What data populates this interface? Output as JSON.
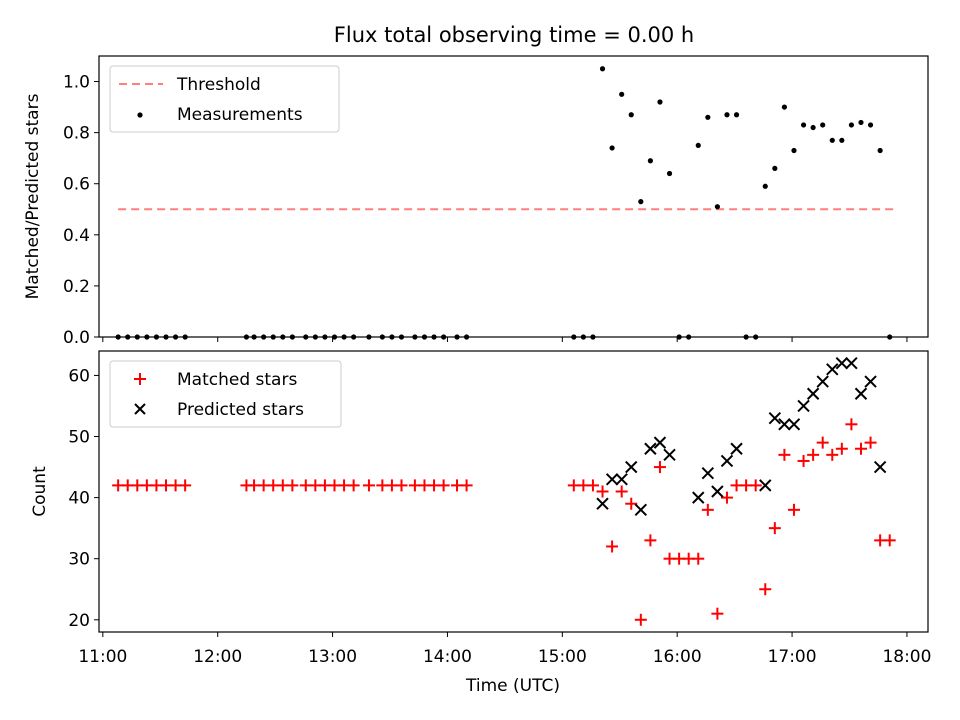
{
  "figure": {
    "title": "Flux total observing time = 0.00 h",
    "xlabel": "Time (UTC)"
  },
  "chart_data": [
    {
      "type": "scatter",
      "ylabel": "Matched/Predicted stars",
      "ylim": [
        0.0,
        1.1
      ],
      "yticks": [
        0.0,
        0.2,
        0.4,
        0.6,
        0.8,
        1.0
      ],
      "ytick_labels": [
        "0.0",
        "0.2",
        "0.4",
        "0.6",
        "0.8",
        "1.0"
      ],
      "xlim": [
        "10:58",
        "18:11"
      ],
      "xticks": [
        "11:00",
        "12:00",
        "13:00",
        "14:00",
        "15:00",
        "16:00",
        "17:00",
        "18:00"
      ],
      "xtick_labels": [
        "11:00",
        "12:00",
        "13:00",
        "14:00",
        "15:00",
        "16:00",
        "17:00",
        "18:00"
      ],
      "legend": "upper-left",
      "threshold": {
        "name": "Threshold",
        "value": 0.5,
        "x_range": [
          "11:08",
          "17:54"
        ],
        "color": "#ff7f7f",
        "style": "dashed"
      },
      "series": [
        {
          "name": "Measurements",
          "marker": "dot",
          "color": "#000000",
          "points": [
            [
              "11:08",
              0.0
            ],
            [
              "11:13",
              0.0
            ],
            [
              "11:18",
              0.0
            ],
            [
              "11:23",
              0.0
            ],
            [
              "11:28",
              0.0
            ],
            [
              "11:33",
              0.0
            ],
            [
              "11:38",
              0.0
            ],
            [
              "11:43",
              0.0
            ],
            [
              "12:15",
              0.0
            ],
            [
              "12:19",
              0.0
            ],
            [
              "12:24",
              0.0
            ],
            [
              "12:29",
              0.0
            ],
            [
              "12:34",
              0.0
            ],
            [
              "12:39",
              0.0
            ],
            [
              "12:46",
              0.0
            ],
            [
              "12:51",
              0.0
            ],
            [
              "12:56",
              0.0
            ],
            [
              "13:01",
              0.0
            ],
            [
              "13:06",
              0.0
            ],
            [
              "13:11",
              0.0
            ],
            [
              "13:19",
              0.0
            ],
            [
              "13:26",
              0.0
            ],
            [
              "13:31",
              0.0
            ],
            [
              "13:36",
              0.0
            ],
            [
              "13:43",
              0.0
            ],
            [
              "13:48",
              0.0
            ],
            [
              "13:53",
              0.0
            ],
            [
              "13:58",
              0.0
            ],
            [
              "14:05",
              0.0
            ],
            [
              "14:10",
              0.0
            ],
            [
              "15:06",
              0.0
            ],
            [
              "15:11",
              0.0
            ],
            [
              "15:16",
              0.0
            ],
            [
              "15:21",
              1.05
            ],
            [
              "15:26",
              0.74
            ],
            [
              "15:31",
              0.95
            ],
            [
              "15:36",
              0.87
            ],
            [
              "15:41",
              0.53
            ],
            [
              "15:46",
              0.69
            ],
            [
              "15:51",
              0.92
            ],
            [
              "15:56",
              0.64
            ],
            [
              "16:01",
              0.0
            ],
            [
              "16:06",
              0.0
            ],
            [
              "16:11",
              0.75
            ],
            [
              "16:16",
              0.86
            ],
            [
              "16:21",
              0.51
            ],
            [
              "16:26",
              0.87
            ],
            [
              "16:31",
              0.87
            ],
            [
              "16:36",
              0.0
            ],
            [
              "16:41",
              0.0
            ],
            [
              "16:46",
              0.59
            ],
            [
              "16:51",
              0.66
            ],
            [
              "16:56",
              0.9
            ],
            [
              "17:01",
              0.73
            ],
            [
              "17:06",
              0.83
            ],
            [
              "17:11",
              0.82
            ],
            [
              "17:16",
              0.83
            ],
            [
              "17:21",
              0.77
            ],
            [
              "17:26",
              0.77
            ],
            [
              "17:31",
              0.83
            ],
            [
              "17:36",
              0.84
            ],
            [
              "17:41",
              0.83
            ],
            [
              "17:46",
              0.73
            ],
            [
              "17:51",
              0.0
            ]
          ]
        }
      ]
    },
    {
      "type": "scatter",
      "ylabel": "Count",
      "ylim": [
        18,
        64
      ],
      "yticks": [
        20,
        30,
        40,
        50,
        60
      ],
      "ytick_labels": [
        "20",
        "30",
        "40",
        "50",
        "60"
      ],
      "xlim": [
        "10:58",
        "18:11"
      ],
      "xticks": [
        "11:00",
        "12:00",
        "13:00",
        "14:00",
        "15:00",
        "16:00",
        "17:00",
        "18:00"
      ],
      "xtick_labels": [
        "11:00",
        "12:00",
        "13:00",
        "14:00",
        "15:00",
        "16:00",
        "17:00",
        "18:00"
      ],
      "legend": "upper-left",
      "series": [
        {
          "name": "Matched stars",
          "marker": "plus",
          "color": "#ff0000",
          "points": [
            [
              "11:08",
              42
            ],
            [
              "11:13",
              42
            ],
            [
              "11:18",
              42
            ],
            [
              "11:23",
              42
            ],
            [
              "11:28",
              42
            ],
            [
              "11:33",
              42
            ],
            [
              "11:38",
              42
            ],
            [
              "11:43",
              42
            ],
            [
              "12:15",
              42
            ],
            [
              "12:19",
              42
            ],
            [
              "12:24",
              42
            ],
            [
              "12:29",
              42
            ],
            [
              "12:34",
              42
            ],
            [
              "12:39",
              42
            ],
            [
              "12:46",
              42
            ],
            [
              "12:51",
              42
            ],
            [
              "12:56",
              42
            ],
            [
              "13:01",
              42
            ],
            [
              "13:06",
              42
            ],
            [
              "13:11",
              42
            ],
            [
              "13:19",
              42
            ],
            [
              "13:26",
              42
            ],
            [
              "13:31",
              42
            ],
            [
              "13:36",
              42
            ],
            [
              "13:43",
              42
            ],
            [
              "13:48",
              42
            ],
            [
              "13:53",
              42
            ],
            [
              "13:58",
              42
            ],
            [
              "14:05",
              42
            ],
            [
              "14:10",
              42
            ],
            [
              "15:06",
              42
            ],
            [
              "15:11",
              42
            ],
            [
              "15:16",
              42
            ],
            [
              "15:21",
              41
            ],
            [
              "15:26",
              32
            ],
            [
              "15:31",
              41
            ],
            [
              "15:36",
              39
            ],
            [
              "15:41",
              20
            ],
            [
              "15:46",
              33
            ],
            [
              "15:51",
              45
            ],
            [
              "15:56",
              30
            ],
            [
              "16:01",
              30
            ],
            [
              "16:06",
              30
            ],
            [
              "16:11",
              30
            ],
            [
              "16:16",
              38
            ],
            [
              "16:21",
              21
            ],
            [
              "16:26",
              40
            ],
            [
              "16:31",
              42
            ],
            [
              "16:36",
              42
            ],
            [
              "16:41",
              42
            ],
            [
              "16:46",
              25
            ],
            [
              "16:51",
              35
            ],
            [
              "16:56",
              47
            ],
            [
              "17:01",
              38
            ],
            [
              "17:06",
              46
            ],
            [
              "17:11",
              47
            ],
            [
              "17:16",
              49
            ],
            [
              "17:21",
              47
            ],
            [
              "17:26",
              48
            ],
            [
              "17:31",
              52
            ],
            [
              "17:36",
              48
            ],
            [
              "17:41",
              49
            ],
            [
              "17:46",
              33
            ],
            [
              "17:51",
              33
            ]
          ]
        },
        {
          "name": "Predicted stars",
          "marker": "x",
          "color": "#000000",
          "points": [
            [
              "15:21",
              39
            ],
            [
              "15:26",
              43
            ],
            [
              "15:31",
              43
            ],
            [
              "15:36",
              45
            ],
            [
              "15:41",
              38
            ],
            [
              "15:46",
              48
            ],
            [
              "15:51",
              49
            ],
            [
              "15:56",
              47
            ],
            [
              "16:11",
              40
            ],
            [
              "16:16",
              44
            ],
            [
              "16:21",
              41
            ],
            [
              "16:26",
              46
            ],
            [
              "16:31",
              48
            ],
            [
              "16:46",
              42
            ],
            [
              "16:51",
              53
            ],
            [
              "16:56",
              52
            ],
            [
              "17:01",
              52
            ],
            [
              "17:06",
              55
            ],
            [
              "17:11",
              57
            ],
            [
              "17:16",
              59
            ],
            [
              "17:21",
              61
            ],
            [
              "17:26",
              62
            ],
            [
              "17:31",
              62
            ],
            [
              "17:36",
              57
            ],
            [
              "17:41",
              59
            ],
            [
              "17:46",
              45
            ]
          ]
        }
      ]
    }
  ]
}
